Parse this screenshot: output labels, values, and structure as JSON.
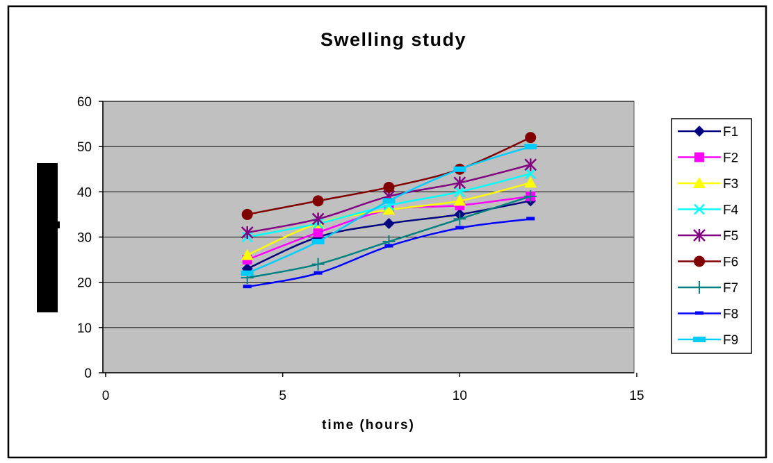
{
  "chart_data": {
    "type": "line",
    "title": "Swelling study",
    "xlabel": "time (hours)",
    "ylabel": "",
    "xlim": [
      0,
      15
    ],
    "ylim": [
      0,
      60
    ],
    "x_ticks": [
      0,
      5,
      10,
      15
    ],
    "y_ticks": [
      0,
      10,
      20,
      30,
      40,
      50,
      60
    ],
    "grid": "horizontal",
    "legend_position": "right",
    "plot_background": "#c0c0c0",
    "x": [
      4,
      6,
      8,
      10,
      12
    ],
    "series": [
      {
        "name": "F1",
        "color": "#000080",
        "marker": "diamond",
        "values": [
          23,
          30,
          33,
          35,
          38
        ]
      },
      {
        "name": "F2",
        "color": "#ff00ff",
        "marker": "square",
        "values": [
          25,
          31,
          36,
          37,
          39
        ]
      },
      {
        "name": "F3",
        "color": "#ffff00",
        "marker": "triangle",
        "values": [
          26,
          33,
          36,
          38,
          42
        ]
      },
      {
        "name": "F4",
        "color": "#00ffff",
        "marker": "x",
        "values": [
          30,
          33,
          37,
          40,
          44
        ]
      },
      {
        "name": "F5",
        "color": "#800080",
        "marker": "star",
        "values": [
          31,
          34,
          39,
          42,
          46
        ]
      },
      {
        "name": "F6",
        "color": "#800000",
        "marker": "circle",
        "values": [
          35,
          38,
          41,
          45,
          52
        ]
      },
      {
        "name": "F7",
        "color": "#008080",
        "marker": "plus",
        "values": [
          21,
          24,
          29,
          34,
          39
        ]
      },
      {
        "name": "F8",
        "color": "#0000ff",
        "marker": "dash",
        "values": [
          19,
          22,
          28,
          32,
          34
        ]
      },
      {
        "name": "F9",
        "color": "#00ccff",
        "marker": "bar",
        "values": [
          22,
          29,
          38,
          45,
          50
        ]
      }
    ]
  }
}
